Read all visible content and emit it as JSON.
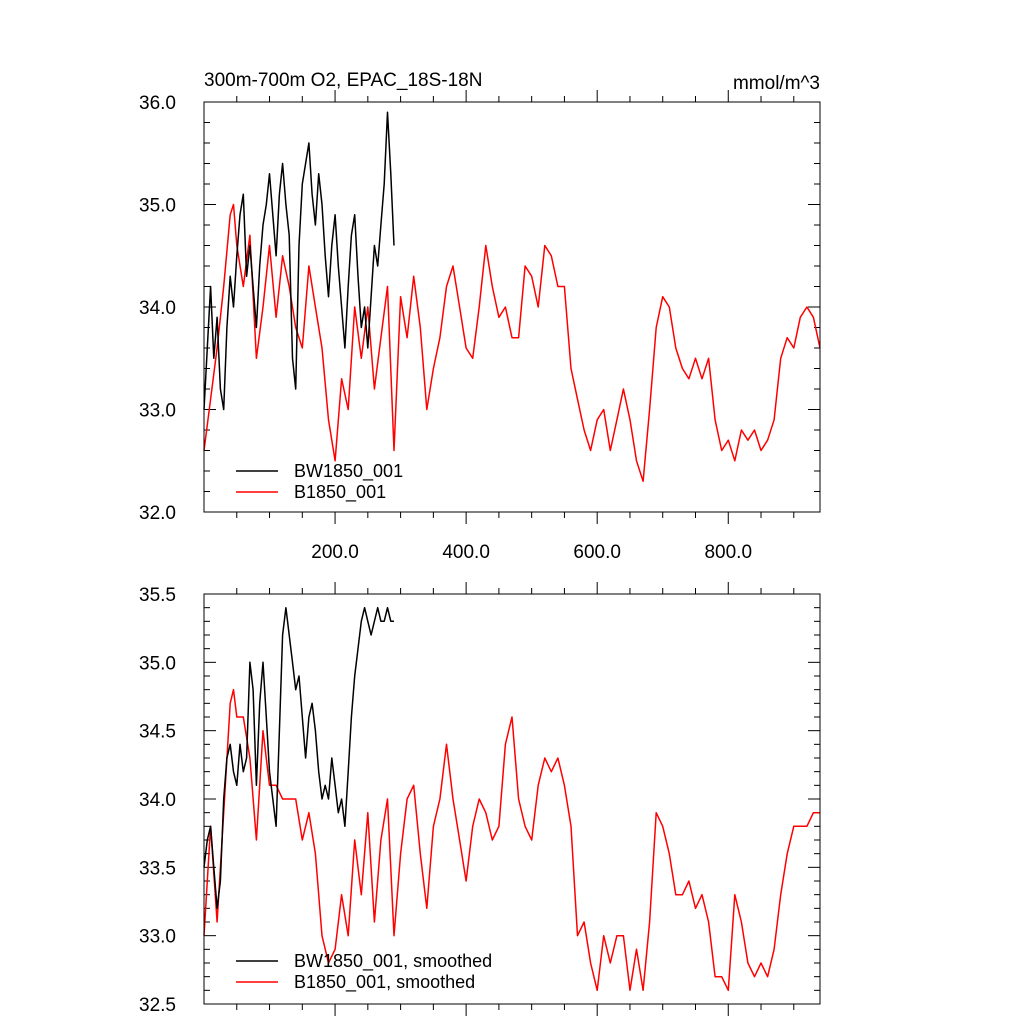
{
  "chart_data": [
    {
      "type": "line",
      "title": "300m-700m O2, EPAC_18S-18N",
      "units": "mmol/m^3",
      "xlim": [
        0,
        940
      ],
      "ylim": [
        32.0,
        36.0
      ],
      "grid": false,
      "legend_position": "bottom-left",
      "xticks": [
        200,
        400,
        600,
        800
      ],
      "xtick_labels": [
        "200.0",
        "400.0",
        "600.0",
        "800.0"
      ],
      "yticks": [
        32,
        33,
        34,
        35,
        36
      ],
      "ytick_labels": [
        "32.0",
        "33.0",
        "34.0",
        "35.0",
        "36.0"
      ],
      "series": [
        {
          "name": "BW1850_001",
          "color": "#000000",
          "x": [
            0,
            5,
            10,
            15,
            20,
            25,
            30,
            35,
            40,
            45,
            50,
            55,
            60,
            65,
            70,
            75,
            80,
            85,
            90,
            95,
            100,
            105,
            110,
            115,
            120,
            125,
            130,
            135,
            140,
            145,
            150,
            155,
            160,
            165,
            170,
            175,
            180,
            185,
            190,
            195,
            200,
            205,
            210,
            215,
            220,
            225,
            230,
            235,
            240,
            245,
            250,
            255,
            260,
            265,
            270,
            275,
            280,
            285,
            290
          ],
          "y": [
            33.0,
            33.6,
            34.2,
            33.5,
            33.9,
            33.2,
            33.0,
            33.8,
            34.3,
            34.0,
            34.5,
            34.9,
            35.1,
            34.3,
            34.6,
            34.2,
            33.8,
            34.4,
            34.8,
            35.0,
            35.3,
            34.9,
            34.5,
            35.1,
            35.4,
            35.0,
            34.7,
            33.5,
            33.2,
            34.6,
            35.2,
            35.4,
            35.6,
            35.1,
            34.8,
            35.3,
            35.0,
            34.5,
            34.1,
            34.6,
            34.9,
            34.4,
            34.0,
            33.6,
            34.2,
            34.7,
            34.9,
            34.3,
            33.8,
            34.0,
            33.6,
            34.1,
            34.6,
            34.4,
            34.8,
            35.2,
            35.9,
            35.3,
            34.6
          ]
        },
        {
          "name": "B1850_001",
          "color": "#ff0000",
          "x": [
            0,
            10,
            20,
            30,
            40,
            45,
            50,
            60,
            70,
            80,
            90,
            100,
            110,
            120,
            130,
            140,
            150,
            160,
            170,
            180,
            190,
            200,
            210,
            220,
            230,
            240,
            250,
            260,
            270,
            280,
            290,
            300,
            310,
            320,
            330,
            340,
            350,
            360,
            370,
            380,
            390,
            400,
            410,
            420,
            430,
            440,
            450,
            460,
            470,
            480,
            490,
            500,
            510,
            520,
            530,
            540,
            550,
            560,
            570,
            580,
            590,
            600,
            610,
            620,
            630,
            640,
            650,
            660,
            670,
            680,
            690,
            700,
            710,
            720,
            730,
            740,
            750,
            760,
            770,
            780,
            790,
            800,
            810,
            820,
            830,
            840,
            850,
            860,
            870,
            880,
            890,
            900,
            910,
            920,
            930,
            940
          ],
          "y": [
            32.6,
            33.1,
            33.6,
            34.2,
            34.9,
            35.0,
            34.6,
            34.2,
            34.7,
            33.5,
            34.0,
            34.6,
            33.9,
            34.5,
            34.2,
            33.8,
            33.6,
            34.4,
            34.0,
            33.6,
            32.9,
            32.5,
            33.3,
            33.0,
            34.0,
            33.5,
            34.0,
            33.2,
            33.7,
            34.2,
            32.6,
            34.1,
            33.7,
            34.3,
            33.8,
            33.0,
            33.4,
            33.7,
            34.2,
            34.4,
            34.0,
            33.6,
            33.5,
            34.0,
            34.6,
            34.2,
            33.9,
            34.0,
            33.7,
            33.7,
            34.4,
            34.3,
            34.0,
            34.6,
            34.5,
            34.2,
            34.2,
            33.4,
            33.1,
            32.8,
            32.6,
            32.9,
            33.0,
            32.6,
            32.9,
            33.2,
            32.9,
            32.5,
            32.3,
            33.0,
            33.8,
            34.1,
            34.0,
            33.6,
            33.4,
            33.3,
            33.5,
            33.3,
            33.5,
            32.9,
            32.6,
            32.7,
            32.5,
            32.8,
            32.7,
            32.8,
            32.6,
            32.7,
            32.9,
            33.5,
            33.7,
            33.6,
            33.9,
            34.0,
            33.9,
            33.6
          ]
        }
      ]
    },
    {
      "type": "line",
      "title": "",
      "xlim": [
        0,
        940
      ],
      "ylim": [
        32.5,
        35.5
      ],
      "grid": false,
      "legend_position": "bottom-left",
      "yticks": [
        32.5,
        33.0,
        33.5,
        34.0,
        34.5,
        35.0,
        35.5
      ],
      "ytick_labels": [
        "32.5",
        "33.0",
        "33.5",
        "34.0",
        "34.5",
        "35.0",
        "35.5"
      ],
      "series": [
        {
          "name": "BW1850_001, smoothed",
          "color": "#000000",
          "x": [
            0,
            5,
            10,
            15,
            20,
            25,
            30,
            35,
            40,
            45,
            50,
            55,
            60,
            65,
            70,
            75,
            80,
            85,
            90,
            95,
            100,
            105,
            110,
            115,
            120,
            125,
            130,
            135,
            140,
            145,
            150,
            155,
            160,
            165,
            170,
            175,
            180,
            185,
            190,
            195,
            200,
            205,
            210,
            215,
            220,
            225,
            230,
            235,
            240,
            245,
            250,
            255,
            260,
            265,
            270,
            275,
            280,
            285,
            290
          ],
          "y": [
            33.5,
            33.7,
            33.8,
            33.5,
            33.2,
            33.4,
            34.0,
            34.3,
            34.4,
            34.2,
            34.1,
            34.4,
            34.2,
            34.3,
            35.0,
            34.8,
            34.1,
            34.7,
            35.0,
            34.6,
            34.2,
            34.0,
            33.8,
            34.5,
            35.2,
            35.4,
            35.2,
            35.0,
            34.8,
            34.9,
            34.6,
            34.3,
            34.6,
            34.7,
            34.5,
            34.2,
            34.0,
            34.1,
            34.0,
            34.3,
            34.1,
            33.9,
            34.0,
            33.8,
            34.2,
            34.6,
            34.9,
            35.1,
            35.3,
            35.4,
            35.3,
            35.2,
            35.3,
            35.4,
            35.3,
            35.3,
            35.4,
            35.3,
            35.3
          ]
        },
        {
          "name": "B1850_001, smoothed",
          "color": "#ff0000",
          "x": [
            0,
            10,
            20,
            30,
            40,
            45,
            50,
            60,
            70,
            80,
            90,
            100,
            110,
            120,
            130,
            140,
            150,
            160,
            170,
            180,
            190,
            200,
            210,
            220,
            230,
            240,
            250,
            260,
            270,
            280,
            290,
            300,
            310,
            320,
            330,
            340,
            350,
            360,
            370,
            380,
            390,
            400,
            410,
            420,
            430,
            440,
            450,
            460,
            470,
            480,
            490,
            500,
            510,
            520,
            530,
            540,
            550,
            560,
            570,
            580,
            590,
            600,
            610,
            620,
            630,
            640,
            650,
            660,
            670,
            680,
            690,
            700,
            710,
            720,
            730,
            740,
            750,
            760,
            770,
            780,
            790,
            800,
            810,
            820,
            830,
            840,
            850,
            860,
            870,
            880,
            890,
            900,
            910,
            920,
            930,
            940
          ],
          "y": [
            33.0,
            33.8,
            33.1,
            33.9,
            34.7,
            34.8,
            34.6,
            34.6,
            34.3,
            33.7,
            34.5,
            34.1,
            34.1,
            34.0,
            34.0,
            34.0,
            33.7,
            33.9,
            33.6,
            33.0,
            32.8,
            32.9,
            33.3,
            33.0,
            33.7,
            33.3,
            33.9,
            33.1,
            33.7,
            34.0,
            33.0,
            33.6,
            34.0,
            34.1,
            33.6,
            33.2,
            33.8,
            34.0,
            34.4,
            34.0,
            33.7,
            33.4,
            33.8,
            34.0,
            33.9,
            33.7,
            33.8,
            34.4,
            34.6,
            34.0,
            33.8,
            33.7,
            34.1,
            34.3,
            34.2,
            34.3,
            34.1,
            33.8,
            33.0,
            33.1,
            32.8,
            32.6,
            33.0,
            32.8,
            33.0,
            33.0,
            32.6,
            32.9,
            32.6,
            33.1,
            33.9,
            33.8,
            33.6,
            33.3,
            33.3,
            33.4,
            33.2,
            33.3,
            33.1,
            32.7,
            32.7,
            32.6,
            33.3,
            33.1,
            32.8,
            32.7,
            32.8,
            32.7,
            32.9,
            33.3,
            33.6,
            33.8,
            33.8,
            33.8,
            33.9,
            33.9
          ]
        }
      ]
    }
  ]
}
